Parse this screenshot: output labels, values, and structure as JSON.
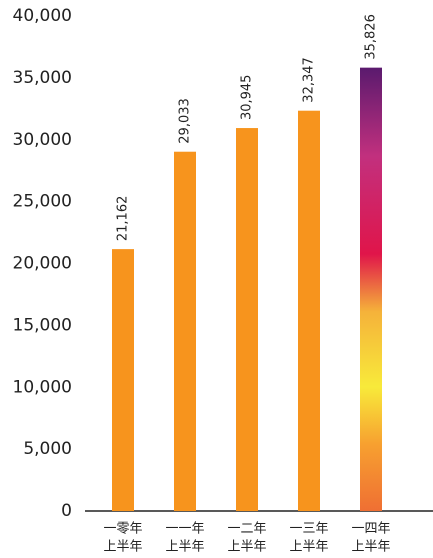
{
  "chart_data": {
    "type": "bar",
    "categories": [
      [
        "一零年",
        "上半年"
      ],
      [
        "一一年",
        "上半年"
      ],
      [
        "一二年",
        "上半年"
      ],
      [
        "一三年",
        "上半年"
      ],
      [
        "一四年",
        "上半年"
      ]
    ],
    "values": [
      21162,
      29033,
      30945,
      32347,
      35826
    ],
    "value_labels": [
      "21,162",
      "29,033",
      "30,945",
      "32,347",
      "35,826"
    ],
    "colors": [
      "#f7941d",
      "#f7941d",
      "#f7941d",
      "#f7941d",
      "url(#photo-fill)"
    ],
    "ylim": [
      0,
      40000
    ],
    "yticks": [
      0,
      {
        "value": 5000,
        "label": "5,000"
      },
      {
        "value": 10000,
        "label": "10,000"
      },
      {
        "value": 15000,
        "label": "15,000"
      },
      {
        "value": 20000,
        "label": "20,000"
      },
      {
        "value": 25000,
        "label": "25,000"
      },
      {
        "value": 30000,
        "label": "30,000"
      },
      {
        "value": 35000,
        "label": "35,000"
      },
      {
        "value": 40000,
        "label": "40,000"
      }
    ],
    "grid": false
  }
}
